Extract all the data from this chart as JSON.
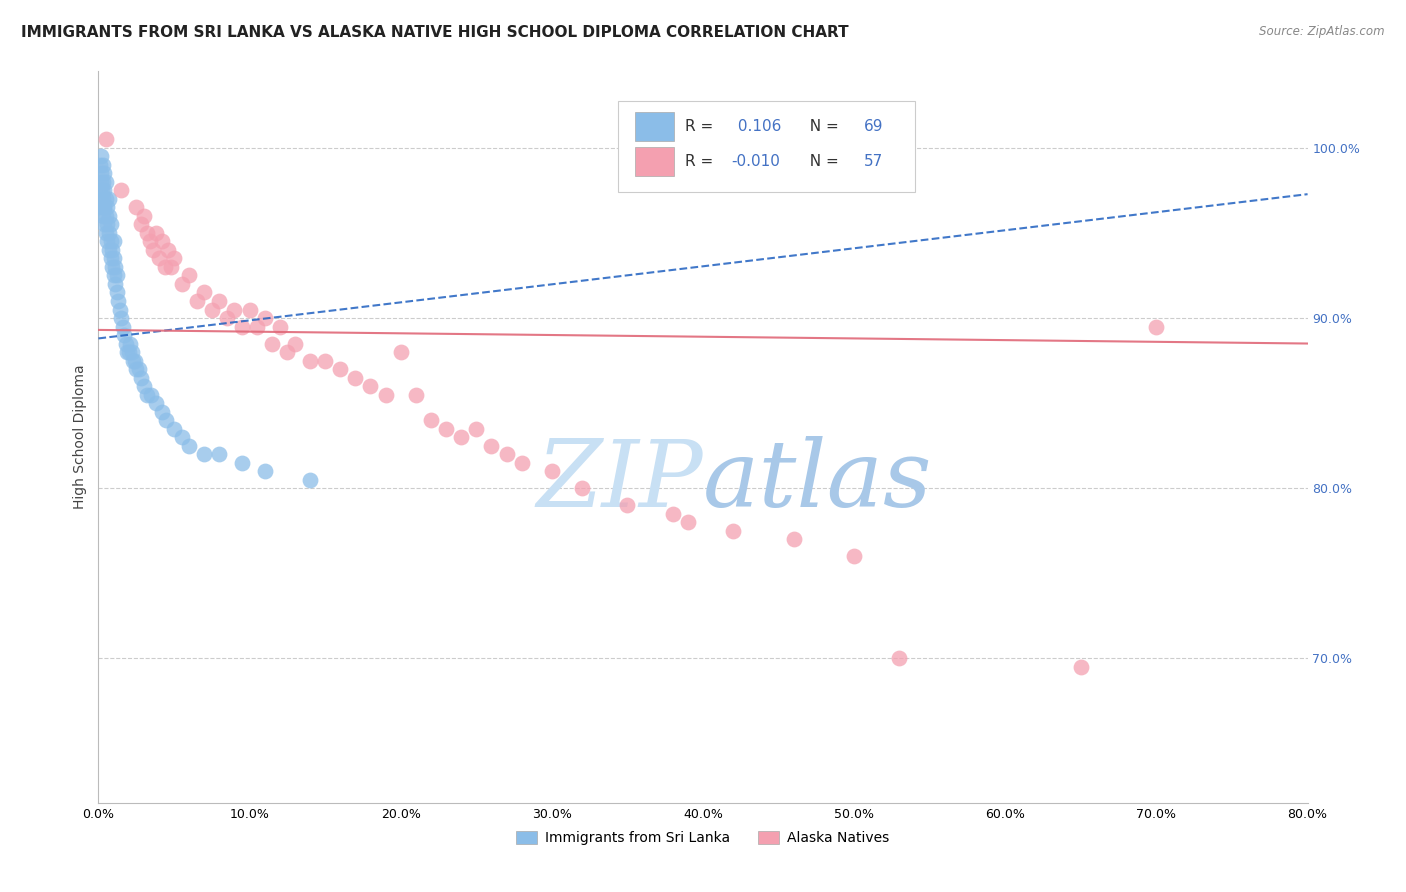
{
  "title": "IMMIGRANTS FROM SRI LANKA VS ALASKA NATIVE HIGH SCHOOL DIPLOMA CORRELATION CHART",
  "source": "Source: ZipAtlas.com",
  "ylabel": "High School Diploma",
  "watermark": "ZIPatlas",
  "legend_blue_r": "0.106",
  "legend_blue_n": "69",
  "legend_pink_r": "-0.010",
  "legend_pink_n": "57",
  "legend_label_blue": "Immigrants from Sri Lanka",
  "legend_label_pink": "Alaska Natives",
  "xlim": [
    0,
    0.8
  ],
  "ylim": [
    0.615,
    1.045
  ],
  "blue_scatter_x": [
    0.0005,
    0.001,
    0.001,
    0.0015,
    0.002,
    0.002,
    0.002,
    0.0025,
    0.003,
    0.003,
    0.003,
    0.003,
    0.0035,
    0.004,
    0.004,
    0.004,
    0.004,
    0.005,
    0.005,
    0.005,
    0.005,
    0.006,
    0.006,
    0.006,
    0.007,
    0.007,
    0.007,
    0.007,
    0.008,
    0.008,
    0.008,
    0.009,
    0.009,
    0.01,
    0.01,
    0.01,
    0.011,
    0.011,
    0.012,
    0.012,
    0.013,
    0.014,
    0.015,
    0.016,
    0.017,
    0.018,
    0.019,
    0.02,
    0.021,
    0.022,
    0.023,
    0.024,
    0.025,
    0.027,
    0.028,
    0.03,
    0.032,
    0.035,
    0.038,
    0.042,
    0.045,
    0.05,
    0.055,
    0.06,
    0.07,
    0.08,
    0.095,
    0.11,
    0.14
  ],
  "blue_scatter_y": [
    0.965,
    0.975,
    0.99,
    0.985,
    0.97,
    0.98,
    0.995,
    0.975,
    0.96,
    0.97,
    0.98,
    0.99,
    0.965,
    0.955,
    0.965,
    0.975,
    0.985,
    0.95,
    0.96,
    0.97,
    0.98,
    0.945,
    0.955,
    0.965,
    0.94,
    0.95,
    0.96,
    0.97,
    0.935,
    0.945,
    0.955,
    0.93,
    0.94,
    0.925,
    0.935,
    0.945,
    0.92,
    0.93,
    0.915,
    0.925,
    0.91,
    0.905,
    0.9,
    0.895,
    0.89,
    0.885,
    0.88,
    0.88,
    0.885,
    0.88,
    0.875,
    0.875,
    0.87,
    0.87,
    0.865,
    0.86,
    0.855,
    0.855,
    0.85,
    0.845,
    0.84,
    0.835,
    0.83,
    0.825,
    0.82,
    0.82,
    0.815,
    0.81,
    0.805
  ],
  "pink_scatter_x": [
    0.005,
    0.015,
    0.025,
    0.028,
    0.03,
    0.032,
    0.034,
    0.036,
    0.038,
    0.04,
    0.042,
    0.044,
    0.046,
    0.048,
    0.05,
    0.055,
    0.06,
    0.065,
    0.07,
    0.075,
    0.08,
    0.085,
    0.09,
    0.095,
    0.1,
    0.105,
    0.11,
    0.115,
    0.12,
    0.125,
    0.13,
    0.14,
    0.15,
    0.16,
    0.17,
    0.18,
    0.19,
    0.2,
    0.21,
    0.22,
    0.23,
    0.24,
    0.25,
    0.26,
    0.27,
    0.28,
    0.3,
    0.32,
    0.35,
    0.38,
    0.39,
    0.42,
    0.46,
    0.5,
    0.53,
    0.65,
    0.7
  ],
  "pink_scatter_y": [
    1.005,
    0.975,
    0.965,
    0.955,
    0.96,
    0.95,
    0.945,
    0.94,
    0.95,
    0.935,
    0.945,
    0.93,
    0.94,
    0.93,
    0.935,
    0.92,
    0.925,
    0.91,
    0.915,
    0.905,
    0.91,
    0.9,
    0.905,
    0.895,
    0.905,
    0.895,
    0.9,
    0.885,
    0.895,
    0.88,
    0.885,
    0.875,
    0.875,
    0.87,
    0.865,
    0.86,
    0.855,
    0.88,
    0.855,
    0.84,
    0.835,
    0.83,
    0.835,
    0.825,
    0.82,
    0.815,
    0.81,
    0.8,
    0.79,
    0.785,
    0.78,
    0.775,
    0.77,
    0.76,
    0.7,
    0.695,
    0.895
  ],
  "blue_color": "#8bbde8",
  "pink_color": "#f4a0b0",
  "blue_line_color": "#2060c0",
  "pink_line_color": "#e06878",
  "grid_color": "#cccccc",
  "background_color": "#ffffff",
  "title_fontsize": 11,
  "axis_fontsize": 10,
  "tick_fontsize": 9,
  "right_tick_color": "#4472c4",
  "watermark_color": "#daedf8",
  "blue_trend_slope": 0.106,
  "blue_trend_intercept": 0.888,
  "pink_trend_slope": -0.01,
  "pink_trend_intercept": 0.893
}
